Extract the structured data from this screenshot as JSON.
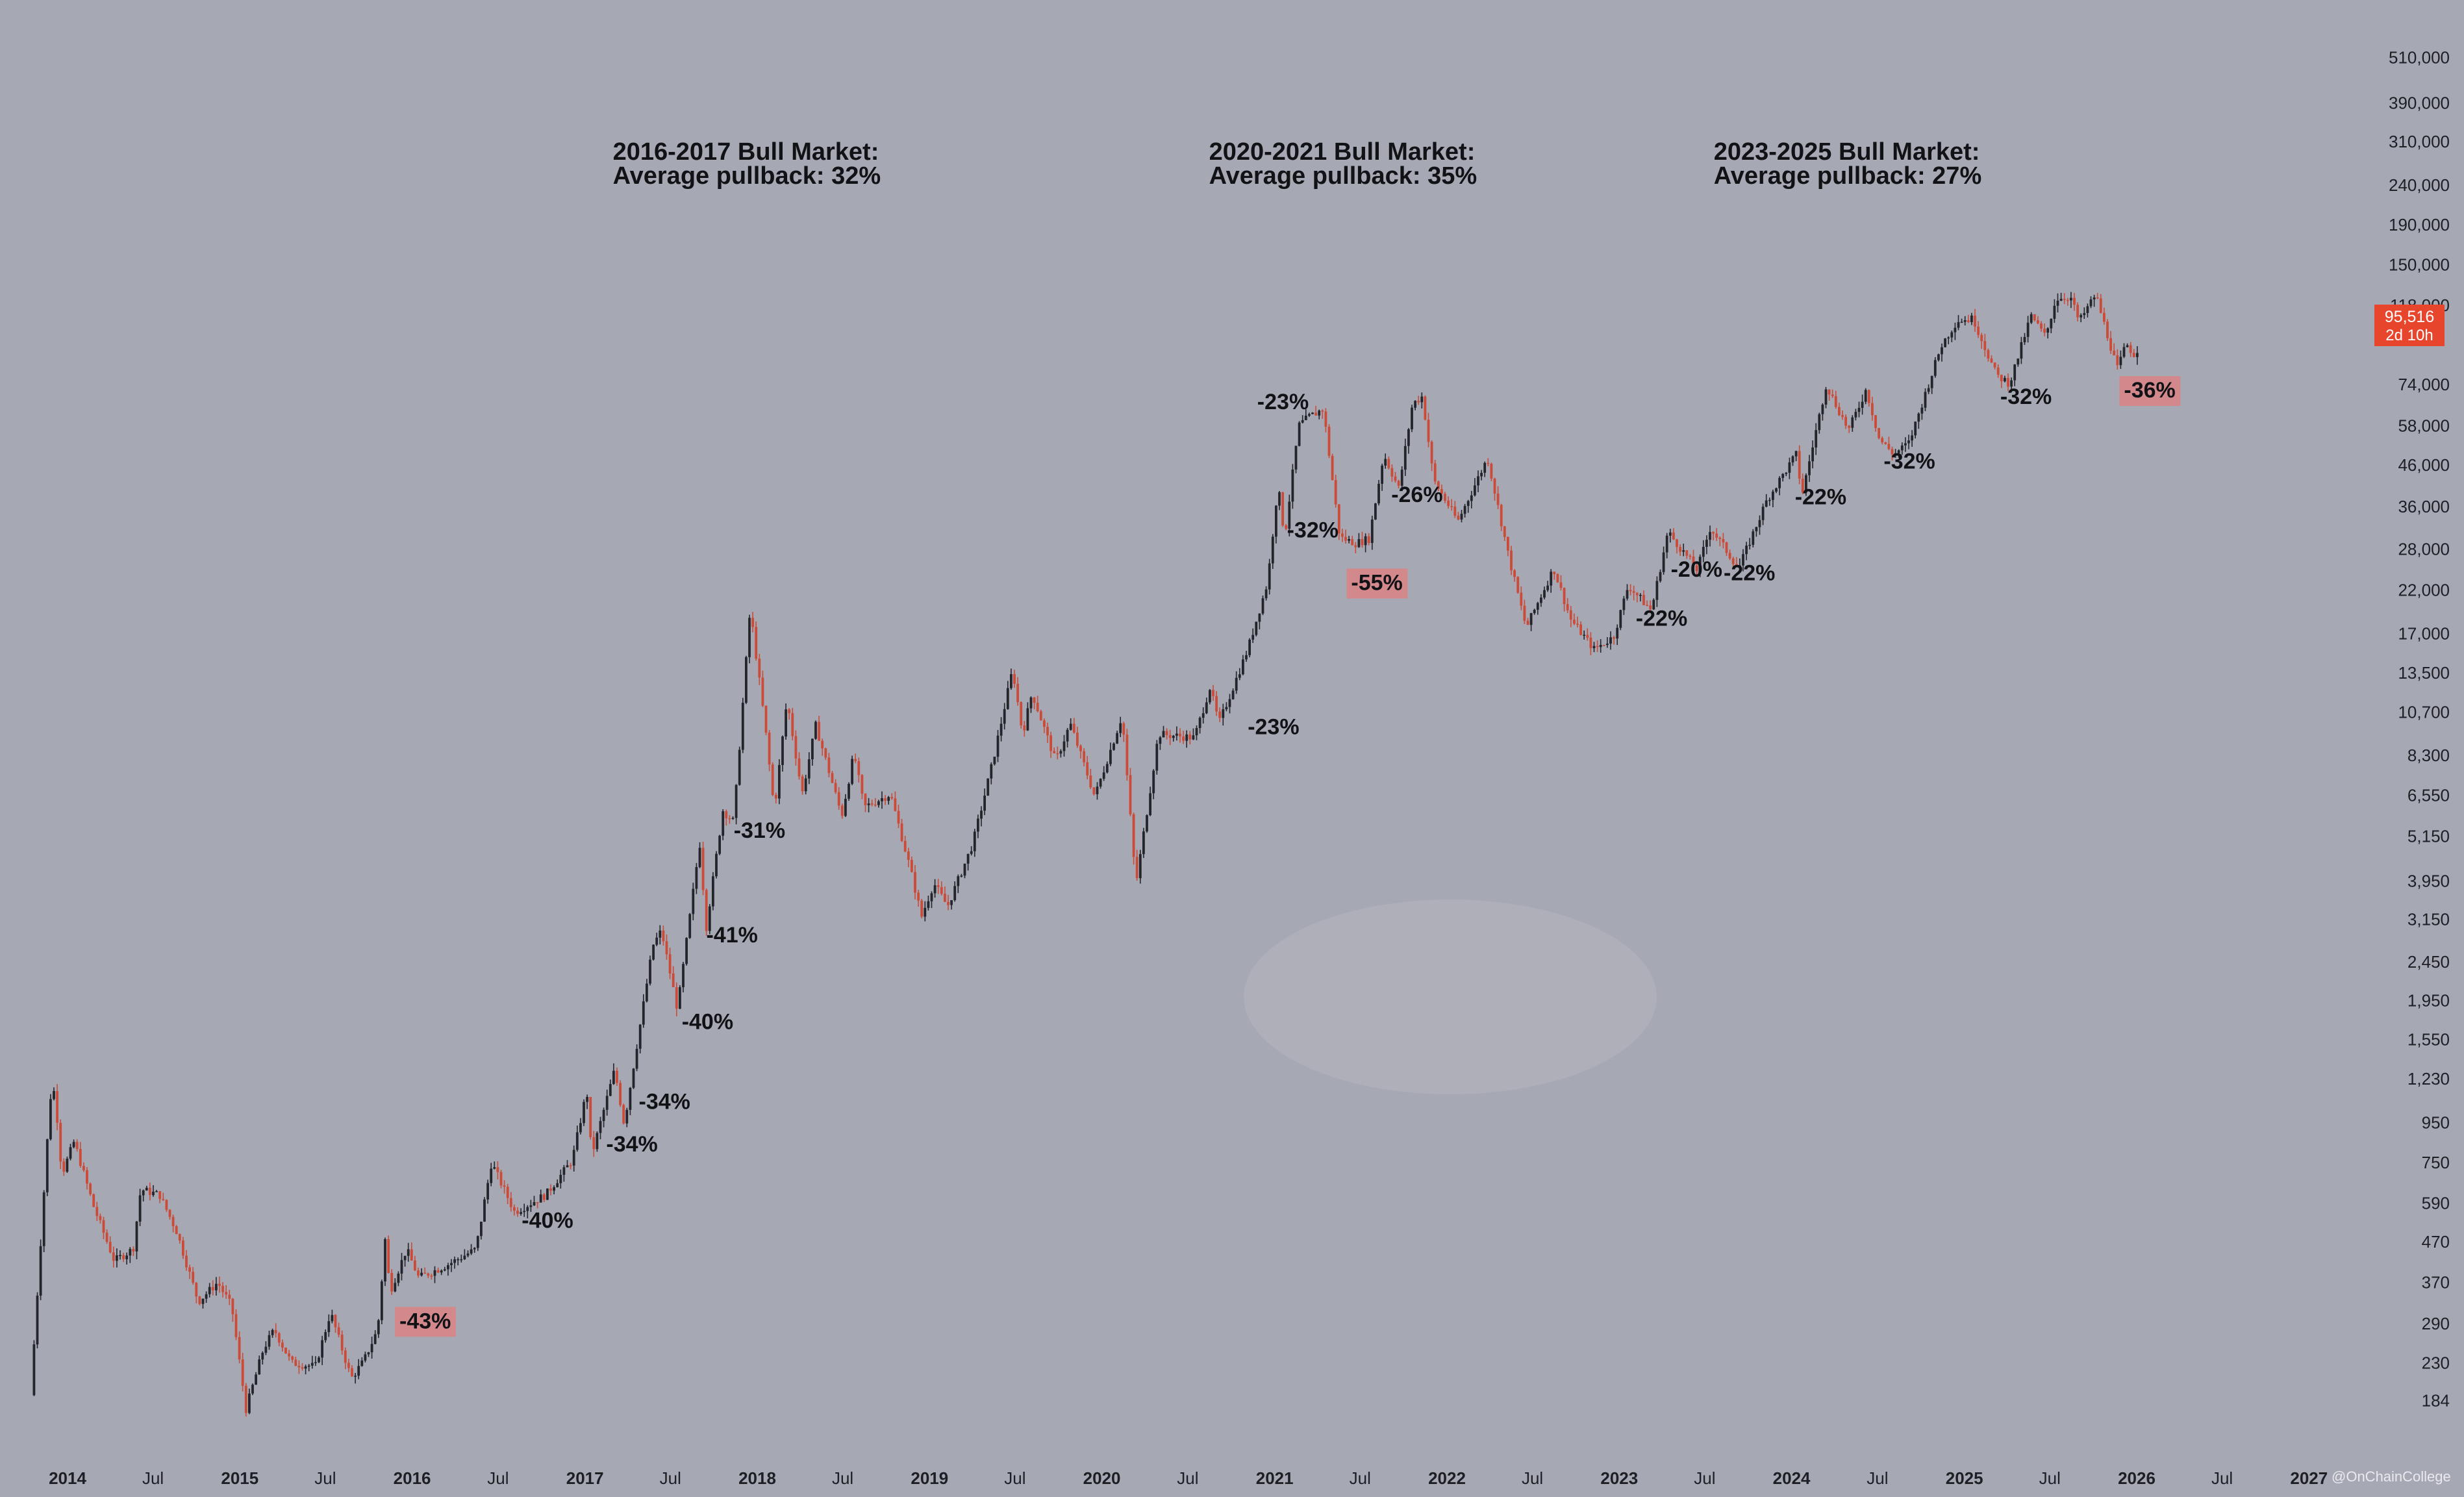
{
  "chart_data": {
    "type": "candlestick",
    "title": "",
    "y_scale": "log",
    "ylim": [
      150,
      650000
    ],
    "xlim": [
      "2013-09-01",
      "2026-12-31"
    ],
    "y_ticks": [
      {
        "label": "184",
        "value": 184
      },
      {
        "label": "230",
        "value": 230
      },
      {
        "label": "290",
        "value": 290
      },
      {
        "label": "370",
        "value": 370
      },
      {
        "label": "470",
        "value": 470
      },
      {
        "label": "590",
        "value": 590
      },
      {
        "label": "750",
        "value": 750
      },
      {
        "label": "950",
        "value": 950
      },
      {
        "label": "1,230",
        "value": 1230
      },
      {
        "label": "1,550",
        "value": 1550
      },
      {
        "label": "1,950",
        "value": 1950
      },
      {
        "label": "2,450",
        "value": 2450
      },
      {
        "label": "3,150",
        "value": 3150
      },
      {
        "label": "3,950",
        "value": 3950
      },
      {
        "label": "5,150",
        "value": 5150
      },
      {
        "label": "6,550",
        "value": 6550
      },
      {
        "label": "8,300",
        "value": 8300
      },
      {
        "label": "10,700",
        "value": 10700
      },
      {
        "label": "13,500",
        "value": 13500
      },
      {
        "label": "17,000",
        "value": 17000
      },
      {
        "label": "22,000",
        "value": 22000
      },
      {
        "label": "28,000",
        "value": 28000
      },
      {
        "label": "36,000",
        "value": 36000
      },
      {
        "label": "46,000",
        "value": 46000
      },
      {
        "label": "58,000",
        "value": 58000
      },
      {
        "label": "74,000",
        "value": 74000
      },
      {
        "label": "118,000",
        "value": 118000
      },
      {
        "label": "150,000",
        "value": 150000
      },
      {
        "label": "190,000",
        "value": 190000
      },
      {
        "label": "240,000",
        "value": 240000
      },
      {
        "label": "310,000",
        "value": 310000
      },
      {
        "label": "390,000",
        "value": 390000
      },
      {
        "label": "510,000",
        "value": 510000
      }
    ],
    "x_ticks": [
      {
        "label": "2014",
        "date": "2014-01-01",
        "major": true
      },
      {
        "label": "Jul",
        "date": "2014-07-01",
        "major": false
      },
      {
        "label": "2015",
        "date": "2015-01-01",
        "major": true
      },
      {
        "label": "Jul",
        "date": "2015-07-01",
        "major": false
      },
      {
        "label": "2016",
        "date": "2016-01-01",
        "major": true
      },
      {
        "label": "Jul",
        "date": "2016-07-01",
        "major": false
      },
      {
        "label": "2017",
        "date": "2017-01-01",
        "major": true
      },
      {
        "label": "Jul",
        "date": "2017-07-01",
        "major": false
      },
      {
        "label": "2018",
        "date": "2018-01-01",
        "major": true
      },
      {
        "label": "Jul",
        "date": "2018-07-01",
        "major": false
      },
      {
        "label": "2019",
        "date": "2019-01-01",
        "major": true
      },
      {
        "label": "Jul",
        "date": "2019-07-01",
        "major": false
      },
      {
        "label": "2020",
        "date": "2020-01-01",
        "major": true
      },
      {
        "label": "Jul",
        "date": "2020-07-01",
        "major": false
      },
      {
        "label": "2021",
        "date": "2021-01-01",
        "major": true
      },
      {
        "label": "Jul",
        "date": "2021-07-01",
        "major": false
      },
      {
        "label": "2022",
        "date": "2022-01-01",
        "major": true
      },
      {
        "label": "Jul",
        "date": "2022-07-01",
        "major": false
      },
      {
        "label": "2023",
        "date": "2023-01-01",
        "major": true
      },
      {
        "label": "Jul",
        "date": "2023-07-01",
        "major": false
      },
      {
        "label": "2024",
        "date": "2024-01-01",
        "major": true
      },
      {
        "label": "Jul",
        "date": "2024-07-01",
        "major": false
      },
      {
        "label": "2025",
        "date": "2025-01-01",
        "major": true
      },
      {
        "label": "Jul",
        "date": "2025-07-01",
        "major": false
      },
      {
        "label": "2026",
        "date": "2026-01-01",
        "major": true
      },
      {
        "label": "Jul",
        "date": "2026-07-01",
        "major": false
      },
      {
        "label": "2027",
        "date": "2027-01-01",
        "major": true
      }
    ],
    "price_path": [
      [
        "2013-10-15",
        190
      ],
      [
        "2013-11-25",
        1100
      ],
      [
        "2013-12-05",
        1150
      ],
      [
        "2013-12-20",
        700
      ],
      [
        "2014-01-15",
        850
      ],
      [
        "2014-02-25",
        580
      ],
      [
        "2014-04-10",
        420
      ],
      [
        "2014-05-20",
        450
      ],
      [
        "2014-06-05",
        640
      ],
      [
        "2014-07-15",
        620
      ],
      [
        "2014-08-20",
        500
      ],
      [
        "2014-10-05",
        330
      ],
      [
        "2014-11-15",
        370
      ],
      [
        "2014-12-15",
        320
      ],
      [
        "2015-01-14",
        175
      ],
      [
        "2015-02-20",
        250
      ],
      [
        "2015-03-15",
        280
      ],
      [
        "2015-04-20",
        230
      ],
      [
        "2015-06-10",
        225
      ],
      [
        "2015-07-12",
        310
      ],
      [
        "2015-08-25",
        210
      ],
      [
        "2015-09-20",
        232
      ],
      [
        "2015-10-20",
        280
      ],
      [
        "2015-11-05",
        480
      ],
      [
        "2015-11-15",
        350
      ],
      [
        "2015-12-20",
        450
      ],
      [
        "2016-01-15",
        380
      ],
      [
        "2016-03-15",
        410
      ],
      [
        "2016-05-15",
        450
      ],
      [
        "2016-06-17",
        750
      ],
      [
        "2016-08-05",
        560
      ],
      [
        "2016-10-10",
        620
      ],
      [
        "2016-12-05",
        760
      ],
      [
        "2017-01-05",
        1150
      ],
      [
        "2017-01-15",
        780
      ],
      [
        "2017-03-05",
        1300
      ],
      [
        "2017-03-25",
        940
      ],
      [
        "2017-05-25",
        2700
      ],
      [
        "2017-06-12",
        2950
      ],
      [
        "2017-07-16",
        1850
      ],
      [
        "2017-09-01",
        4950
      ],
      [
        "2017-09-15",
        3000
      ],
      [
        "2017-10-20",
        6000
      ],
      [
        "2017-11-12",
        5600
      ],
      [
        "2017-12-17",
        19700
      ],
      [
        "2018-01-17",
        10000
      ],
      [
        "2018-02-06",
        6000
      ],
      [
        "2018-03-05",
        11500
      ],
      [
        "2018-04-06",
        6600
      ],
      [
        "2018-05-05",
        9900
      ],
      [
        "2018-06-29",
        5800
      ],
      [
        "2018-07-25",
        8400
      ],
      [
        "2018-08-15",
        6100
      ],
      [
        "2018-10-10",
        6600
      ],
      [
        "2018-11-20",
        4300
      ],
      [
        "2018-12-15",
        3200
      ],
      [
        "2019-01-10",
        3900
      ],
      [
        "2019-02-08",
        3400
      ],
      [
        "2019-04-02",
        4900
      ],
      [
        "2019-05-15",
        8000
      ],
      [
        "2019-06-26",
        13800
      ],
      [
        "2019-07-17",
        9400
      ],
      [
        "2019-08-06",
        12000
      ],
      [
        "2019-09-25",
        8000
      ],
      [
        "2019-10-26",
        10000
      ],
      [
        "2019-12-17",
        6500
      ],
      [
        "2020-02-13",
        10500
      ],
      [
        "2020-03-13",
        3850
      ],
      [
        "2020-04-30",
        9400
      ],
      [
        "2020-07-15",
        9200
      ],
      [
        "2020-08-17",
        12400
      ],
      [
        "2020-09-05",
        10000
      ],
      [
        "2020-11-05",
        15500
      ],
      [
        "2020-12-17",
        23000
      ],
      [
        "2021-01-08",
        41000
      ],
      [
        "2021-01-22",
        30000
      ],
      [
        "2021-02-21",
        58000
      ],
      [
        "2021-03-14",
        61000
      ],
      [
        "2021-04-14",
        64000
      ],
      [
        "2021-05-19",
        30000
      ],
      [
        "2021-06-22",
        29000
      ],
      [
        "2021-07-20",
        29800
      ],
      [
        "2021-08-20",
        49000
      ],
      [
        "2021-09-21",
        40000
      ],
      [
        "2021-10-20",
        66000
      ],
      [
        "2021-11-10",
        69000
      ],
      [
        "2021-12-04",
        42000
      ],
      [
        "2022-01-24",
        33000
      ],
      [
        "2022-03-28",
        48000
      ],
      [
        "2022-05-12",
        26700
      ],
      [
        "2022-06-18",
        17600
      ],
      [
        "2022-08-15",
        25000
      ],
      [
        "2022-09-20",
        18500
      ],
      [
        "2022-11-09",
        15500
      ],
      [
        "2022-12-20",
        16700
      ],
      [
        "2023-01-20",
        22600
      ],
      [
        "2023-03-10",
        19500
      ],
      [
        "2023-04-14",
        31000
      ],
      [
        "2023-06-15",
        24800
      ],
      [
        "2023-07-13",
        31800
      ],
      [
        "2023-09-11",
        25000
      ],
      [
        "2023-11-10",
        37500
      ],
      [
        "2024-01-11",
        49000
      ],
      [
        "2024-01-23",
        38500
      ],
      [
        "2024-03-14",
        73800
      ],
      [
        "2024-05-01",
        56500
      ],
      [
        "2024-06-07",
        71900
      ],
      [
        "2024-07-05",
        53500
      ],
      [
        "2024-08-05",
        49000
      ],
      [
        "2024-09-06",
        52500
      ],
      [
        "2024-11-13",
        93000
      ],
      [
        "2024-12-17",
        108000
      ],
      [
        "2025-01-20",
        109000
      ],
      [
        "2025-03-10",
        78000
      ],
      [
        "2025-04-07",
        74500
      ],
      [
        "2025-05-22",
        111000
      ],
      [
        "2025-06-22",
        98000
      ],
      [
        "2025-07-14",
        123000
      ],
      [
        "2025-08-14",
        124000
      ],
      [
        "2025-09-01",
        107000
      ],
      [
        "2025-10-06",
        126000
      ],
      [
        "2025-11-21",
        81000
      ],
      [
        "2025-12-10",
        94000
      ],
      [
        "2025-12-29",
        87500
      ],
      [
        "2026-01-07",
        95516
      ]
    ],
    "section_titles": [
      {
        "line1": "2016-2017 Bull Market:",
        "line2": "Average pullback: 32%",
        "date": "2017-03-01"
      },
      {
        "line1": "2020-2021 Bull Market:",
        "line2": "Average pullback: 35%",
        "date": "2020-08-15"
      },
      {
        "line1": "2023-2025 Bull Market:",
        "line2": "Average pullback: 27%",
        "date": "2023-07-20"
      }
    ],
    "pullbacks": [
      {
        "text": "-43%",
        "date": "2015-12-05",
        "price": 282,
        "highlight": true
      },
      {
        "text": "-40%",
        "date": "2016-08-20",
        "price": 510,
        "highlight": false
      },
      {
        "text": "-34%",
        "date": "2017-02-15",
        "price": 800,
        "highlight": false
      },
      {
        "text": "-34%",
        "date": "2017-04-25",
        "price": 1030,
        "highlight": false
      },
      {
        "text": "-40%",
        "date": "2017-07-25",
        "price": 1650,
        "highlight": false
      },
      {
        "text": "-41%",
        "date": "2017-09-15",
        "price": 2750,
        "highlight": false
      },
      {
        "text": "-31%",
        "date": "2017-11-12",
        "price": 5100,
        "highlight": false
      },
      {
        "text": "-23%",
        "date": "2020-11-05",
        "price": 9400,
        "highlight": false
      },
      {
        "text": "-23%",
        "date": "2020-11-25",
        "price": 64000,
        "highlight": false
      },
      {
        "text": "-32%",
        "date": "2021-01-27",
        "price": 30000,
        "highlight": false
      },
      {
        "text": "-55%",
        "date": "2021-06-12",
        "price": 22000,
        "highlight": true
      },
      {
        "text": "-26%",
        "date": "2021-09-05",
        "price": 37000,
        "highlight": false
      },
      {
        "text": "-22%",
        "date": "2023-02-05",
        "price": 17800,
        "highlight": false
      },
      {
        "text": "-20%",
        "date": "2023-04-20",
        "price": 23800,
        "highlight": false
      },
      {
        "text": "-22%",
        "date": "2023-08-10",
        "price": 23300,
        "highlight": false
      },
      {
        "text": "-22%",
        "date": "2024-01-08",
        "price": 36500,
        "highlight": false
      },
      {
        "text": "-32%",
        "date": "2024-07-14",
        "price": 45000,
        "highlight": false
      },
      {
        "text": "-32%",
        "date": "2025-03-18",
        "price": 66000,
        "highlight": false
      },
      {
        "text": "-36%",
        "date": "2025-12-05",
        "price": 68500,
        "highlight": true
      }
    ],
    "current_price": {
      "label": "95,516",
      "countdown": "2d 10h",
      "value": 95516
    },
    "watermark": "@OnChainCollege",
    "colors": {
      "up": "#23252b",
      "down": "#cc4a38",
      "highlight": "#d3898c",
      "price_tag": "#e8452d",
      "background": "#a6a8b3"
    }
  }
}
